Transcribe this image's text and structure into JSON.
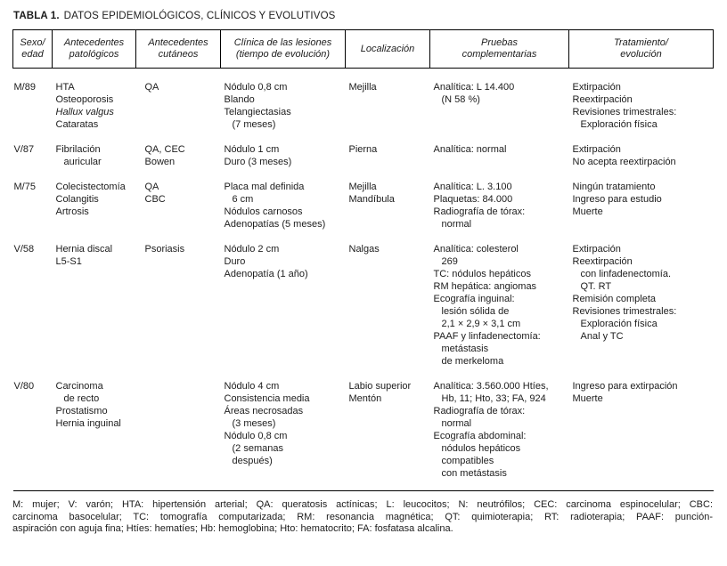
{
  "title": {
    "label": "TABLA 1.",
    "text": "DATOS EPIDEMIOLÓGICOS, CLÍNICOS Y EVOLUTIVOS"
  },
  "table": {
    "headers": [
      {
        "id": "sexo-edad",
        "lines": [
          "Sexo/",
          "edad"
        ]
      },
      {
        "id": "antecedentes-patologicos",
        "lines": [
          "Antecedentes",
          "patológicos"
        ]
      },
      {
        "id": "antecedentes-cutaneos",
        "lines": [
          "Antecedentes",
          "cutáneos"
        ]
      },
      {
        "id": "clinica-lesiones",
        "lines": [
          "Clínica de las lesiones",
          "(tiempo de evolución)"
        ]
      },
      {
        "id": "localizacion",
        "lines": [
          "Localización"
        ]
      },
      {
        "id": "pruebas-complementarias",
        "lines": [
          "Pruebas",
          "complementarias"
        ]
      },
      {
        "id": "tratamiento-evolucion",
        "lines": [
          "Tratamiento/",
          "evolución"
        ]
      }
    ],
    "rows": [
      {
        "id": "m-89",
        "cells": [
          [
            "M/89"
          ],
          [
            "HTA",
            "Osteoporosis",
            {
              "t": "Hallux valgus",
              "it": 1
            },
            "Cataratas"
          ],
          [
            "QA"
          ],
          [
            "Nódulo 0,8 cm",
            "Blando",
            "Telangiectasias",
            {
              "t": "(7 meses)",
              "ind": 1
            }
          ],
          [
            "Mejilla"
          ],
          [
            "Analítica: L 14.400",
            {
              "t": "(N 58 %)",
              "ind": 1
            }
          ],
          [
            "Extirpación",
            "Reextirpación",
            "Revisiones trimestrales:",
            {
              "t": "Exploración física",
              "ind": 1
            }
          ]
        ]
      },
      {
        "id": "v-87",
        "cells": [
          [
            "V/87"
          ],
          [
            "Fibrilación",
            {
              "t": "auricular",
              "ind": 1
            }
          ],
          [
            "QA, CEC",
            "Bowen"
          ],
          [
            "Nódulo 1 cm",
            "Duro (3 meses)"
          ],
          [
            "Pierna"
          ],
          [
            "Analítica: normal"
          ],
          [
            "Extirpación",
            "No acepta reextirpación"
          ]
        ]
      },
      {
        "id": "m-75",
        "cells": [
          [
            "M/75"
          ],
          [
            "Colecistectomía",
            "Colangitis",
            "Artrosis"
          ],
          [
            "QA",
            "CBC"
          ],
          [
            "Placa mal definida",
            {
              "t": "6 cm",
              "ind": 1
            },
            "Nódulos carnosos",
            "Adenopatías (5 meses)"
          ],
          [
            "Mejilla",
            "Mandíbula"
          ],
          [
            "Analítica: L. 3.100",
            "Plaquetas: 84.000",
            "Radiografía de tórax:",
            {
              "t": "normal",
              "ind": 1
            }
          ],
          [
            "Ningún tratamiento",
            "Ingreso para estudio",
            "Muerte"
          ]
        ]
      },
      {
        "id": "v-58",
        "cells": [
          [
            "V/58"
          ],
          [
            "Hernia discal",
            "L5-S1"
          ],
          [
            "Psoriasis"
          ],
          [
            "Nódulo 2 cm",
            "Duro",
            "Adenopatía (1 año)"
          ],
          [
            "Nalgas"
          ],
          [
            "Analítica: colesterol",
            {
              "t": "269",
              "ind": 1
            },
            "TC: nódulos hepáticos",
            "RM hepática: angiomas",
            "Ecografía inguinal:",
            {
              "t": "lesión sólida de",
              "ind": 1
            },
            {
              "t": "2,1 × 2,9 × 3,1 cm",
              "ind": 1
            },
            "PAAF y linfadenectomía:",
            {
              "t": "metástasis",
              "ind": 1
            },
            {
              "t": "de merkeloma",
              "ind": 1
            }
          ],
          [
            "Extirpación",
            "Reextirpación",
            {
              "t": "con linfadenectomía.",
              "ind": 1
            },
            {
              "t": "QT. RT",
              "ind": 1
            },
            "Remisión completa",
            "Revisiones trimestrales:",
            {
              "t": "Exploración física",
              "ind": 1
            },
            {
              "t": "Anal y TC",
              "ind": 1
            }
          ]
        ]
      },
      {
        "id": "v-80",
        "cells": [
          [
            "V/80"
          ],
          [
            "Carcinoma",
            {
              "t": "de recto",
              "ind": 1
            },
            "Prostatismo",
            "Hernia inguinal"
          ],
          [],
          [
            "Nódulo 4 cm",
            "Consistencia media",
            "Áreas necrosadas",
            {
              "t": "(3 meses)",
              "ind": 1
            },
            "Nódulo 0,8 cm",
            {
              "t": "(2 semanas",
              "ind": 1
            },
            {
              "t": "después)",
              "ind": 1
            }
          ],
          [
            "Labio superior",
            "Mentón"
          ],
          [
            "Analítica: 3.560.000 Htíes,",
            {
              "t": "Hb, 11; Hto, 33; FA, 924",
              "ind": 1
            },
            "Radiografía de tórax:",
            {
              "t": "normal",
              "ind": 1
            },
            "Ecografía abdominal:",
            {
              "t": "nódulos hepáticos",
              "ind": 1
            },
            {
              "t": "compatibles",
              "ind": 1
            },
            {
              "t": "con metástasis",
              "ind": 1
            }
          ],
          [
            "Ingreso para extirpación",
            "Muerte"
          ]
        ]
      }
    ]
  },
  "footnote": {
    "lines": [
      "M: mujer; V: varón; HTA: hipertensión arterial; QA: queratosis actínicas; L: leucocitos; N: neutrófilos; CEC: carcinoma espinocelular; CBC:",
      "carcinoma basocelular; TC: tomografía computarizada; RM: resonancia magnética; QT: quimioterapia; RT: radioterapia; PAAF: punción-",
      "aspiración con aguja fina; Htíes: hematíes; Hb: hemoglobina; Hto: hematocrito; FA: fosfatasa alcalina."
    ]
  }
}
